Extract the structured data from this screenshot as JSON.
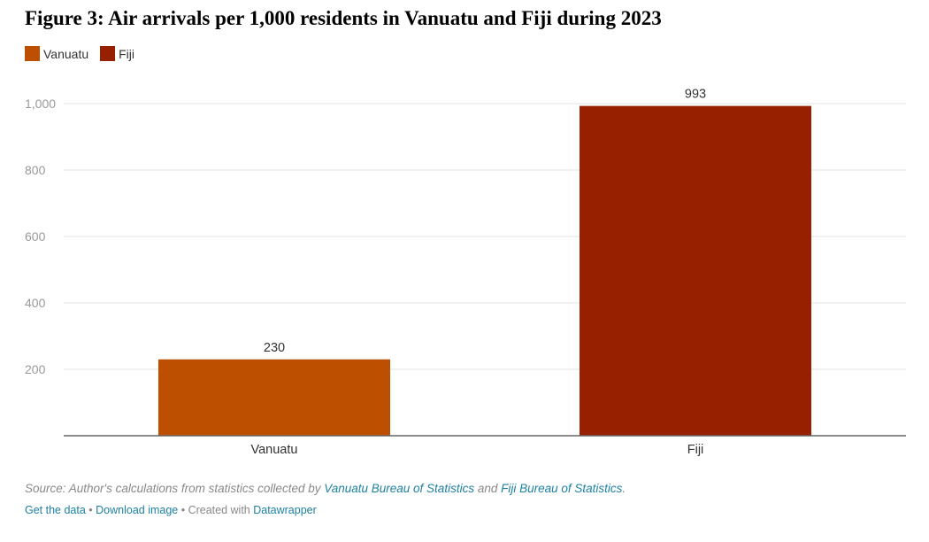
{
  "title": "Figure 3: Air arrivals per 1,000 residents in Vanuatu and Fiji during 2023",
  "legend": [
    {
      "label": "Vanuatu",
      "color": "#bd5000"
    },
    {
      "label": "Fiji",
      "color": "#962000"
    }
  ],
  "chart_data": {
    "type": "bar",
    "categories": [
      "Vanuatu",
      "Fiji"
    ],
    "values": [
      230,
      993
    ],
    "value_labels": [
      "230",
      "993"
    ],
    "colors": [
      "#bd5000",
      "#962000"
    ],
    "ylim": [
      0,
      1000
    ],
    "yticks": [
      200,
      400,
      600,
      800,
      1000
    ],
    "ytick_labels": [
      "200",
      "400",
      "600",
      "800",
      "1,000"
    ],
    "grid": true,
    "legend_position": "top-left"
  },
  "footer": {
    "source_prefix": "Source: Author's calculations from statistics collected by ",
    "source_link_1": "Vanuatu Bureau of Statistics",
    "source_and": " and ",
    "source_link_2": "Fiji Bureau of Statistics",
    "source_end": ".",
    "get_data": "Get the data",
    "sep1": " • ",
    "download": "Download image",
    "sep2": " • Created with ",
    "datawrapper": "Datawrapper"
  }
}
